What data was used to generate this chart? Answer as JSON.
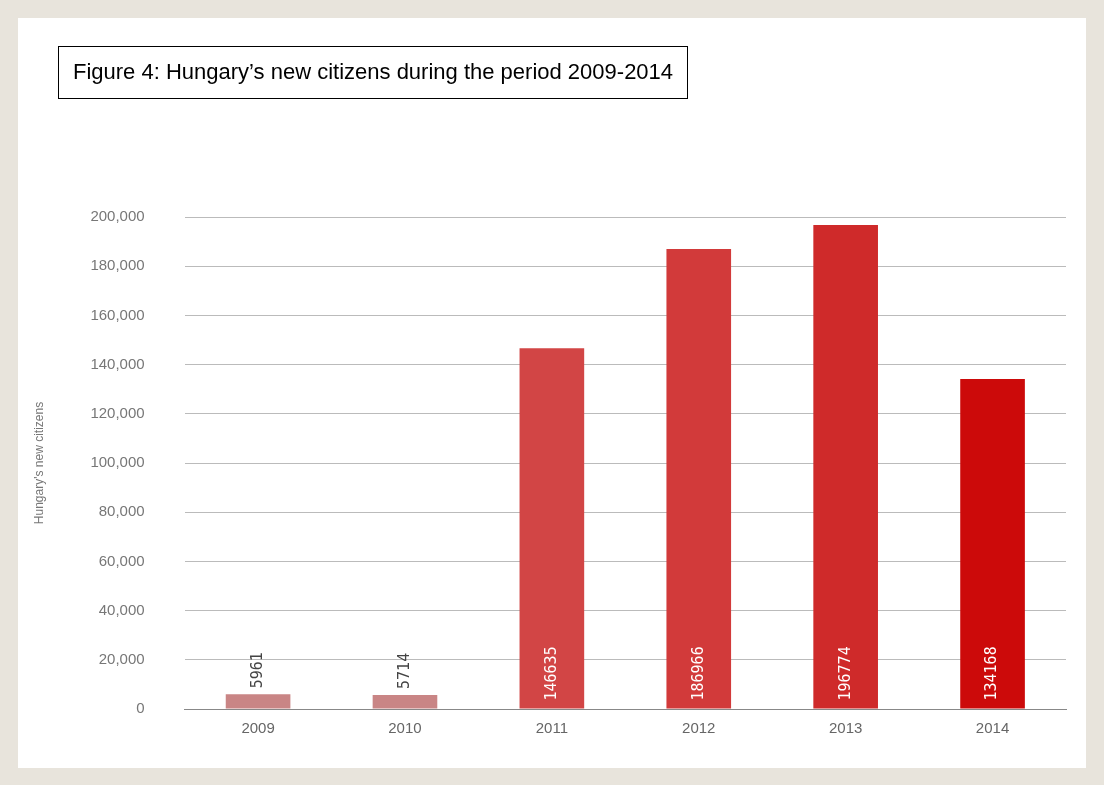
{
  "chart_data": {
    "type": "bar",
    "title": "Figure 4: Hungary’s new citizens during the period 2009-2014",
    "ylabel": "Hungary's new citizens",
    "categories": [
      "2009",
      "2010",
      "2011",
      "2012",
      "2013",
      "2014"
    ],
    "values": [
      5961,
      5714,
      146635,
      186966,
      196774,
      134168
    ],
    "colors": [
      "#c98585",
      "#c98585",
      "#d24545",
      "#d23a3a",
      "#cf2a2a",
      "#cc0a0a"
    ],
    "ylim": [
      0,
      200000
    ],
    "yticks": [
      {
        "value": 0,
        "label": "0"
      },
      {
        "value": 20000,
        "label": "20,000"
      },
      {
        "value": 40000,
        "label": "40,000"
      },
      {
        "value": 60000,
        "label": "60,000"
      },
      {
        "value": 80000,
        "label": "80,000"
      },
      {
        "value": 100000,
        "label": "100,000"
      },
      {
        "value": 120000,
        "label": "120,000"
      },
      {
        "value": 140000,
        "label": "140,000"
      },
      {
        "value": 160000,
        "label": "160,000"
      },
      {
        "value": 180000,
        "label": "180,000"
      },
      {
        "value": 200000,
        "label": "200,000"
      }
    ],
    "grid": "y",
    "data_labels": true,
    "legend": false
  }
}
